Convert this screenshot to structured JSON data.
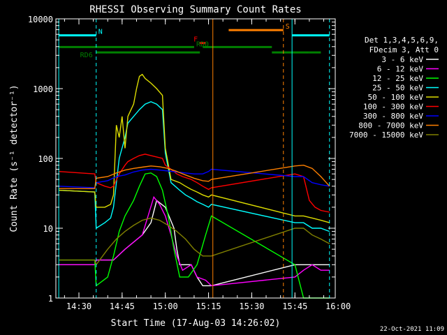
{
  "chart_data": {
    "type": "line",
    "title": "RHESSI Observing Summary Count Rates",
    "xlabel": "Start Time (17-Aug-03 14:26:02)",
    "ylabel": "Count Rate (s⁻¹ detector⁻¹)",
    "y_scale": "log",
    "ylim": [
      1,
      10000
    ],
    "xlim_minutes": [
      -4,
      93
    ],
    "x_ticks": [
      {
        "min": 4,
        "label": "14:30"
      },
      {
        "min": 19,
        "label": "14:45"
      },
      {
        "min": 34,
        "label": "15:00"
      },
      {
        "min": 49,
        "label": "15:15"
      },
      {
        "min": 64,
        "label": "15:30"
      },
      {
        "min": 79,
        "label": "15:45"
      },
      {
        "min": 94,
        "label": "16:00"
      }
    ],
    "y_ticks": [
      {
        "value": 1,
        "label": "1"
      },
      {
        "value": 10,
        "label": "10"
      },
      {
        "value": 100,
        "label": "100"
      },
      {
        "value": 1000,
        "label": "1000"
      },
      {
        "value": 10000,
        "label": "10000"
      }
    ],
    "legend": {
      "placement": "right",
      "header": [
        "Det 1,3,4,5,6,9,",
        "FDecim 3, Att 0"
      ],
      "entries": [
        {
          "label": "3 - 6 keV",
          "color": "#ffffff"
        },
        {
          "label": "6 - 12 keV",
          "color": "#ff00ff"
        },
        {
          "label": "12 - 25 keV",
          "color": "#00ff00"
        },
        {
          "label": "25 - 50 keV",
          "color": "#00ffff"
        },
        {
          "label": "50 - 100 keV",
          "color": "#dddd00"
        },
        {
          "label": "100 - 300 keV",
          "color": "#ff0000"
        },
        {
          "label": "300 - 800 keV",
          "color": "#0000ff"
        },
        {
          "label": "800 - 7000 keV",
          "color": "#ff8000"
        },
        {
          "label": "7000 - 15000 keV",
          "color": "#808000"
        }
      ]
    },
    "flags": [
      {
        "name": "N",
        "color": "#00ffff",
        "y": 5800,
        "segments": [
          [
            -3,
            10
          ],
          [
            78,
            91
          ]
        ]
      },
      {
        "name": "S",
        "color": "#ff8000",
        "y": 6900,
        "segments": [
          [
            56,
            75
          ]
        ]
      },
      {
        "name": "F",
        "color": "#ff0000",
        "y": 4500,
        "segments": [
          [
            46,
            48
          ]
        ]
      },
      {
        "name": "RD0",
        "color": "#008000",
        "y": 3950,
        "segments": [
          [
            -3,
            44
          ],
          [
            47,
            71
          ]
        ]
      },
      {
        "name": "RD6",
        "color": "#008000",
        "y": 3300,
        "segments": [
          [
            10,
            46
          ],
          [
            71,
            84
          ],
          [
            84,
            88
          ]
        ]
      }
    ],
    "vertical_markers": [
      {
        "min": -3,
        "color": "#00ffff",
        "style": "solid"
      },
      {
        "min": 10,
        "color": "#00ffff",
        "style": "dashed"
      },
      {
        "min": 50.5,
        "color": "#ff8000",
        "style": "solid"
      },
      {
        "min": 75,
        "color": "#ff8000",
        "style": "dashed"
      },
      {
        "min": 78,
        "color": "#00ffff",
        "style": "solid"
      },
      {
        "min": 91,
        "color": "#00ffff",
        "style": "dashed"
      }
    ],
    "gaps": [
      [
        50.5,
        78
      ]
    ],
    "series": [
      {
        "name": "3 - 6 keV",
        "color": "#ffffff",
        "points": [
          [
            -3,
            3
          ],
          [
            9.5,
            3
          ],
          [
            10,
            3.5
          ],
          [
            16,
            3.5
          ],
          [
            20,
            5
          ],
          [
            26,
            8
          ],
          [
            29,
            12
          ],
          [
            31,
            25
          ],
          [
            34,
            20
          ],
          [
            37,
            10
          ],
          [
            38,
            5
          ],
          [
            39,
            3
          ],
          [
            43,
            3
          ],
          [
            45,
            2
          ],
          [
            47,
            1.5
          ],
          [
            50,
            1.5
          ],
          [
            79,
            3
          ],
          [
            84,
            3
          ],
          [
            88,
            3
          ],
          [
            91,
            3
          ]
        ]
      },
      {
        "name": "6 - 12 keV",
        "color": "#ff00ff",
        "points": [
          [
            -3,
            3
          ],
          [
            9.5,
            3
          ],
          [
            10,
            3.5
          ],
          [
            16,
            3.5
          ],
          [
            20,
            5
          ],
          [
            26,
            8
          ],
          [
            28,
            15
          ],
          [
            30,
            28
          ],
          [
            32,
            22
          ],
          [
            34,
            15
          ],
          [
            36,
            8
          ],
          [
            38,
            4
          ],
          [
            40,
            2.5
          ],
          [
            43,
            3
          ],
          [
            45,
            2
          ],
          [
            48,
            1.8
          ],
          [
            50,
            1.5
          ],
          [
            79,
            2
          ],
          [
            82,
            2.5
          ],
          [
            85,
            3
          ],
          [
            88,
            2.5
          ],
          [
            91,
            2.5
          ]
        ]
      },
      {
        "name": "12 - 25 keV",
        "color": "#00ff00",
        "points": [
          [
            -3,
            3.5
          ],
          [
            9.5,
            3.5
          ],
          [
            10,
            1.5
          ],
          [
            14,
            2
          ],
          [
            16,
            4
          ],
          [
            18,
            9
          ],
          [
            20,
            15
          ],
          [
            23,
            25
          ],
          [
            25,
            40
          ],
          [
            27,
            60
          ],
          [
            29,
            62
          ],
          [
            31,
            55
          ],
          [
            33,
            35
          ],
          [
            35,
            15
          ],
          [
            37,
            5
          ],
          [
            39,
            2
          ],
          [
            42,
            2
          ],
          [
            45,
            3
          ],
          [
            48,
            8
          ],
          [
            50,
            15
          ],
          [
            79,
            3
          ],
          [
            82,
            1
          ],
          [
            85,
            1
          ],
          [
            88,
            1
          ],
          [
            91,
            1
          ]
        ]
      },
      {
        "name": "25 - 50 keV",
        "color": "#00ffff",
        "points": [
          [
            -3,
            35
          ],
          [
            9.5,
            33
          ],
          [
            10,
            10
          ],
          [
            13,
            12
          ],
          [
            15,
            14
          ],
          [
            16,
            20
          ],
          [
            18,
            100
          ],
          [
            20,
            200
          ],
          [
            21,
            320
          ],
          [
            23,
            400
          ],
          [
            25,
            500
          ],
          [
            27,
            600
          ],
          [
            29,
            650
          ],
          [
            31,
            600
          ],
          [
            33,
            500
          ],
          [
            34,
            120
          ],
          [
            36,
            45
          ],
          [
            39,
            35
          ],
          [
            41,
            30
          ],
          [
            43,
            27
          ],
          [
            45,
            24
          ],
          [
            47,
            22
          ],
          [
            49,
            20
          ],
          [
            50,
            22
          ],
          [
            79,
            12
          ],
          [
            82,
            12
          ],
          [
            85,
            10
          ],
          [
            88,
            10
          ],
          [
            91,
            9
          ]
        ]
      },
      {
        "name": "50 - 100 keV",
        "color": "#dddd00",
        "points": [
          [
            -3,
            35
          ],
          [
            9.5,
            33
          ],
          [
            10,
            20
          ],
          [
            13,
            20
          ],
          [
            15,
            22
          ],
          [
            16,
            30
          ],
          [
            17,
            300
          ],
          [
            18,
            200
          ],
          [
            19,
            400
          ],
          [
            20,
            140
          ],
          [
            21,
            400
          ],
          [
            23,
            600
          ],
          [
            24,
            1000
          ],
          [
            25,
            1500
          ],
          [
            26,
            1600
          ],
          [
            27,
            1400
          ],
          [
            29,
            1200
          ],
          [
            31,
            1000
          ],
          [
            33,
            800
          ],
          [
            34,
            140
          ],
          [
            36,
            50
          ],
          [
            39,
            45
          ],
          [
            41,
            40
          ],
          [
            43,
            36
          ],
          [
            45,
            33
          ],
          [
            47,
            30
          ],
          [
            49,
            28
          ],
          [
            50,
            30
          ],
          [
            79,
            15
          ],
          [
            82,
            15
          ],
          [
            85,
            14
          ],
          [
            88,
            13
          ],
          [
            91,
            12
          ]
        ]
      },
      {
        "name": "100 - 300 keV",
        "color": "#ff0000",
        "points": [
          [
            -3,
            65
          ],
          [
            9.5,
            60
          ],
          [
            10,
            45
          ],
          [
            13,
            40
          ],
          [
            15,
            38
          ],
          [
            16,
            40
          ],
          [
            18,
            60
          ],
          [
            20,
            80
          ],
          [
            21,
            90
          ],
          [
            23,
            100
          ],
          [
            25,
            110
          ],
          [
            27,
            115
          ],
          [
            29,
            110
          ],
          [
            31,
            105
          ],
          [
            33,
            100
          ],
          [
            34,
            80
          ],
          [
            36,
            70
          ],
          [
            38,
            60
          ],
          [
            40,
            55
          ],
          [
            43,
            50
          ],
          [
            45,
            45
          ],
          [
            47,
            40
          ],
          [
            49,
            36
          ],
          [
            50,
            38
          ],
          [
            79,
            60
          ],
          [
            82,
            55
          ],
          [
            84,
            25
          ],
          [
            86,
            20
          ],
          [
            88,
            18
          ],
          [
            91,
            17
          ]
        ]
      },
      {
        "name": "300 - 800 keV",
        "color": "#0000ff",
        "points": [
          [
            -3,
            40
          ],
          [
            9.5,
            38
          ],
          [
            10,
            45
          ],
          [
            14,
            48
          ],
          [
            17,
            55
          ],
          [
            20,
            58
          ],
          [
            23,
            64
          ],
          [
            26,
            68
          ],
          [
            29,
            70
          ],
          [
            32,
            68
          ],
          [
            35,
            66
          ],
          [
            38,
            64
          ],
          [
            41,
            62
          ],
          [
            44,
            60
          ],
          [
            47,
            60
          ],
          [
            49,
            65
          ],
          [
            50,
            70
          ],
          [
            79,
            55
          ],
          [
            82,
            55
          ],
          [
            85,
            45
          ],
          [
            88,
            42
          ],
          [
            91,
            40
          ]
        ]
      },
      {
        "name": "800 - 7000 keV",
        "color": "#ff8000",
        "points": [
          [
            -3,
            37
          ],
          [
            9.5,
            37
          ],
          [
            10,
            52
          ],
          [
            14,
            55
          ],
          [
            17,
            62
          ],
          [
            20,
            68
          ],
          [
            23,
            72
          ],
          [
            26,
            75
          ],
          [
            29,
            78
          ],
          [
            32,
            76
          ],
          [
            35,
            72
          ],
          [
            38,
            65
          ],
          [
            41,
            58
          ],
          [
            44,
            52
          ],
          [
            47,
            48
          ],
          [
            49,
            47
          ],
          [
            50,
            50
          ],
          [
            79,
            78
          ],
          [
            82,
            80
          ],
          [
            85,
            72
          ],
          [
            88,
            55
          ],
          [
            91,
            40
          ]
        ]
      },
      {
        "name": "7000 - 15000 keV",
        "color": "#808000",
        "points": [
          [
            -3,
            3.5
          ],
          [
            9.5,
            3.5
          ],
          [
            10,
            3
          ],
          [
            14,
            5
          ],
          [
            17,
            7
          ],
          [
            20,
            9
          ],
          [
            23,
            11
          ],
          [
            26,
            13
          ],
          [
            29,
            14
          ],
          [
            32,
            13
          ],
          [
            35,
            11
          ],
          [
            38,
            9
          ],
          [
            41,
            7
          ],
          [
            44,
            5
          ],
          [
            47,
            4
          ],
          [
            50,
            4
          ],
          [
            79,
            10
          ],
          [
            82,
            10
          ],
          [
            85,
            8
          ],
          [
            88,
            7
          ],
          [
            91,
            6
          ]
        ]
      }
    ]
  },
  "footer": {
    "date": "22-Oct-2021 11:09"
  }
}
